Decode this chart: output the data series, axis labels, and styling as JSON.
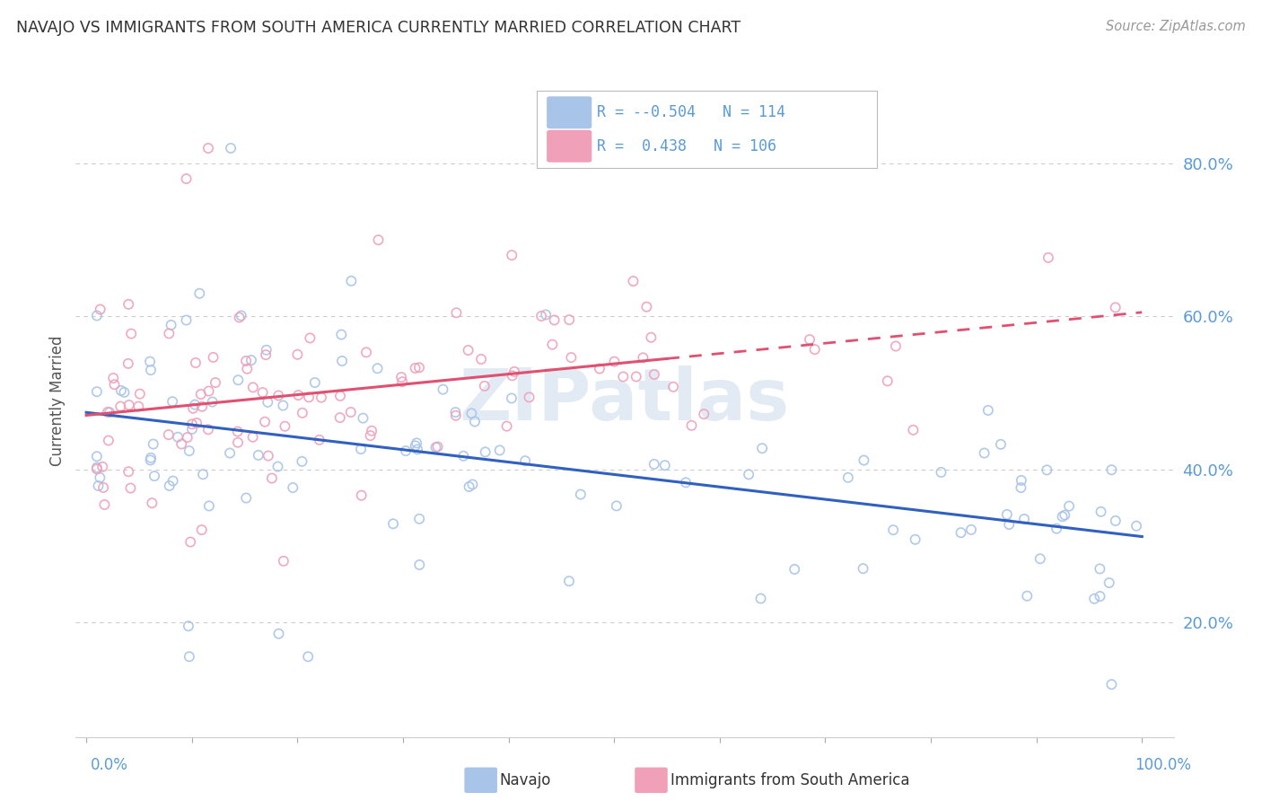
{
  "title": "NAVAJO VS IMMIGRANTS FROM SOUTH AMERICA CURRENTLY MARRIED CORRELATION CHART",
  "source": "Source: ZipAtlas.com",
  "ylabel": "Currently Married",
  "y_ticks_labels": [
    "20.0%",
    "40.0%",
    "60.0%",
    "80.0%"
  ],
  "y_tick_vals": [
    0.2,
    0.4,
    0.6,
    0.8
  ],
  "watermark": "ZIPatlas",
  "blue_scatter_color": "#a8c4e8",
  "pink_scatter_color": "#f0a0b8",
  "trend_blue": "#3060c0",
  "trend_pink": "#e05070",
  "background": "#ffffff",
  "grid_color": "#cccccc",
  "tick_color": "#5b9bd5",
  "title_color": "#333333",
  "source_color": "#999999",
  "legend_r1_val": "-0.504",
  "legend_n1_val": "114",
  "legend_r2_val": "0.438",
  "legend_n2_val": "106"
}
